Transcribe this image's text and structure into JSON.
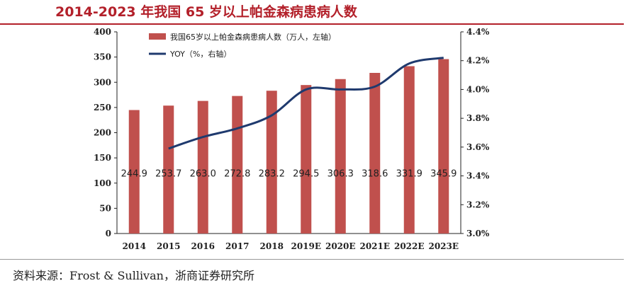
{
  "title": "2014-2023 年我国 65 岁以上帕金森病患病人数",
  "source": "资料来源：Frost & Sullivan，浙商证券研究所",
  "colors": {
    "title": "#b3202a",
    "bar": "#c0504d",
    "line": "#1f3a6e"
  },
  "chart_data": {
    "type": "bar",
    "title": "2014-2023 年我国 65 岁以上帕金森病患病人数",
    "categories": [
      "2014",
      "2015",
      "2016",
      "2017",
      "2018",
      "2019E",
      "2020E",
      "2021E",
      "2022E",
      "2023E"
    ],
    "series": [
      {
        "name": "我国65岁以上帕金森病患病人数（万人，左轴）",
        "type": "bar",
        "axis": "left",
        "values": [
          244.9,
          253.7,
          263.0,
          272.8,
          283.2,
          294.5,
          306.3,
          318.6,
          331.9,
          345.9
        ],
        "labels": [
          "244.9",
          "253.7",
          "263.0",
          "272.8",
          "283.2",
          "294.5",
          "306.3",
          "318.6",
          "331.9",
          "345.9"
        ]
      },
      {
        "name": "YOY（%，右轴）",
        "type": "line",
        "axis": "right",
        "values": [
          null,
          3.59,
          3.67,
          3.73,
          3.82,
          4.0,
          4.0,
          4.02,
          4.18,
          4.22
        ]
      }
    ],
    "y_left": {
      "lim": [
        0,
        400
      ],
      "ticks": [
        "0",
        "50",
        "100",
        "150",
        "200",
        "250",
        "300",
        "350",
        "400"
      ]
    },
    "y_right": {
      "lim": [
        3.0,
        4.4
      ],
      "ticks": [
        "3.0%",
        "3.2%",
        "3.4%",
        "3.6%",
        "3.8%",
        "4.0%",
        "4.2%",
        "4.4%"
      ]
    },
    "legend_position": "top-left"
  }
}
